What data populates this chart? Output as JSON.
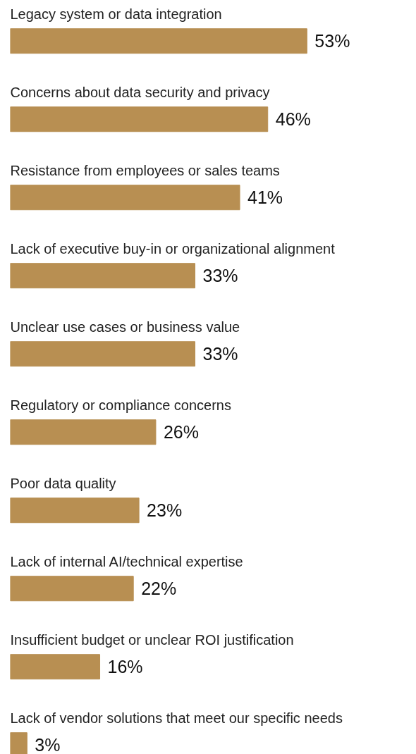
{
  "chart_data": {
    "type": "bar",
    "orientation": "horizontal",
    "color": "#b88f52",
    "categories": [
      "Legacy system or data integration",
      "Concerns about data security and privacy",
      "Resistance from employees or sales teams",
      "Lack of executive buy-in or organizational alignment",
      "Unclear use cases or business value",
      "Regulatory or compliance concerns",
      "Poor data quality",
      "Lack of internal AI/technical expertise",
      "Insufficient budget or unclear ROI justification",
      "Lack of vendor solutions that meet our specific needs"
    ],
    "values": [
      53,
      46,
      41,
      33,
      33,
      26,
      23,
      22,
      16,
      3
    ],
    "value_labels": [
      "53%",
      "46%",
      "41%",
      "33%",
      "33%",
      "26%",
      "23%",
      "22%",
      "16%",
      "3%"
    ],
    "grid": false
  }
}
